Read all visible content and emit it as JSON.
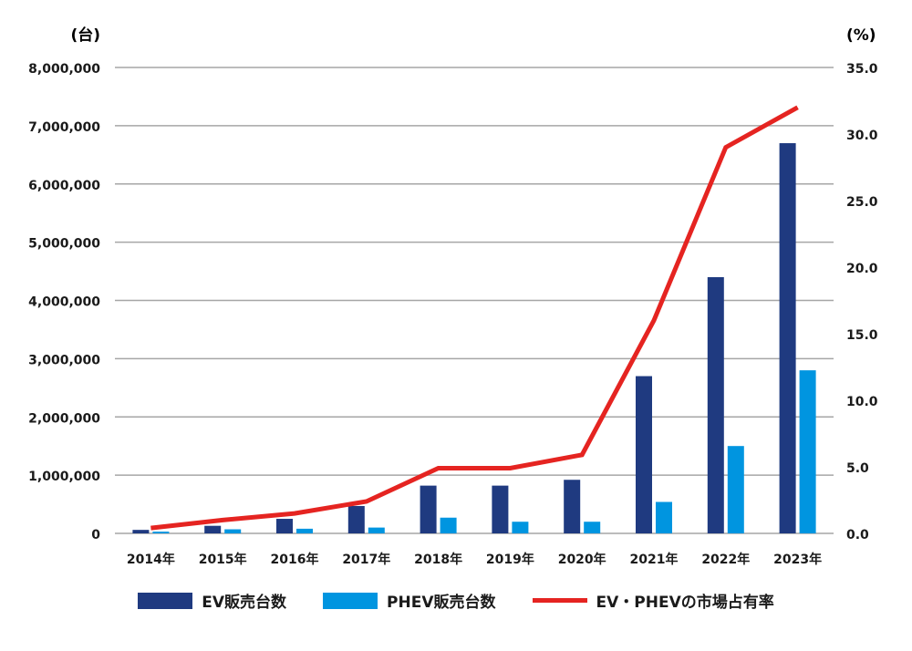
{
  "chart_data": {
    "type": "bar",
    "title": "",
    "categories": [
      "2014年",
      "2015年",
      "2016年",
      "2017年",
      "2018年",
      "2019年",
      "2020年",
      "2021年",
      "2022年",
      "2023年"
    ],
    "series": [
      {
        "name": "EV販売台数",
        "type": "bar",
        "axis": "left",
        "color": "#1f3a80",
        "values": [
          60000,
          130000,
          250000,
          470000,
          820000,
          820000,
          920000,
          2700000,
          4400000,
          6700000
        ]
      },
      {
        "name": "PHEV販売台数",
        "type": "bar",
        "axis": "left",
        "color": "#0095e0",
        "values": [
          30000,
          70000,
          80000,
          100000,
          270000,
          200000,
          200000,
          540000,
          1500000,
          2800000
        ]
      },
      {
        "name": "EV・PHEVの市場占有率",
        "type": "line",
        "axis": "right",
        "color": "#e52421",
        "values": [
          0.4,
          1.0,
          1.5,
          2.4,
          4.9,
          4.9,
          5.9,
          16.0,
          29.0,
          32.0
        ]
      }
    ],
    "ylabel": "(台)",
    "y2label": "(%)",
    "ylim": [
      0,
      8000000
    ],
    "y2lim": [
      0,
      35
    ],
    "yticks": [
      "0",
      "1,000,000",
      "2,000,000",
      "3,000,000",
      "4,000,000",
      "5,000,000",
      "6,000,000",
      "7,000,000",
      "8,000,000"
    ],
    "y2ticks": [
      "0.0",
      "5.0",
      "10.0",
      "15.0",
      "20.0",
      "25.0",
      "30.0",
      "35.0"
    ],
    "grid": true,
    "legend_position": "bottom"
  },
  "legend": [
    {
      "label": "EV販売台数",
      "color": "#1f3a80",
      "kind": "bar"
    },
    {
      "label": "PHEV販売台数",
      "color": "#0095e0",
      "kind": "bar"
    },
    {
      "label": "EV・PHEVの市場占有率",
      "color": "#e52421",
      "kind": "line"
    }
  ]
}
